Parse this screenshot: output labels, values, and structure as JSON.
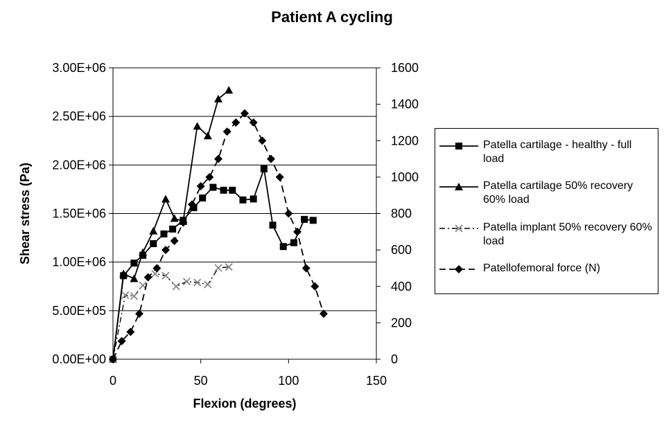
{
  "chart_data": {
    "type": "line",
    "title": "Patient A cycling",
    "xlabel": "Flexion (degrees)",
    "ylabel": "Shear stress (Pa)",
    "y2label": "",
    "xlim": [
      0,
      150
    ],
    "ylim": [
      0,
      3000000
    ],
    "y2lim": [
      0,
      1600
    ],
    "x_ticks": [
      "0",
      "50",
      "100",
      "150"
    ],
    "y_ticks": [
      "0.00E+00",
      "5.00E+05",
      "1.00E+06",
      "1.50E+06",
      "2.00E+06",
      "2.50E+06",
      "3.00E+06"
    ],
    "y2_ticks": [
      "0",
      "200",
      "400",
      "600",
      "800",
      "1000",
      "1200",
      "1400",
      "1600"
    ],
    "grid": "horizontal",
    "legend_position": "right",
    "series": [
      {
        "name": "Patella cartilage - healthy - full load",
        "axis": "left",
        "marker": "square",
        "line": "solid",
        "x": [
          0,
          6,
          12,
          17,
          23,
          29,
          34,
          40,
          46,
          51,
          57,
          63,
          68,
          74,
          80,
          86,
          91,
          97,
          103,
          109,
          114
        ],
        "y": [
          0,
          860000,
          990000,
          1070000,
          1190000,
          1290000,
          1340000,
          1430000,
          1560000,
          1660000,
          1770000,
          1740000,
          1740000,
          1640000,
          1650000,
          1960000,
          1380000,
          1160000,
          1200000,
          1440000,
          1430000
        ]
      },
      {
        "name": "Patella cartilage 50% recovery 60% load",
        "axis": "left",
        "marker": "triangle",
        "line": "solid",
        "x": [
          0,
          6,
          12,
          17,
          23,
          30,
          35,
          40,
          48,
          54,
          60,
          66
        ],
        "y": [
          0,
          880000,
          830000,
          1100000,
          1320000,
          1650000,
          1450000,
          1420000,
          2400000,
          2300000,
          2680000,
          2770000
        ]
      },
      {
        "name": "Patella implant 50% recovery 60% load",
        "axis": "left",
        "marker": "x",
        "line": "dashdot",
        "x": [
          0,
          7,
          12,
          17,
          24,
          30,
          36,
          42,
          48,
          54,
          60,
          66
        ],
        "y": [
          0,
          660000,
          650000,
          760000,
          880000,
          860000,
          750000,
          800000,
          790000,
          770000,
          940000,
          950000
        ]
      },
      {
        "name": "Patellofemoral force (N)",
        "axis": "right",
        "marker": "diamond",
        "line": "dashed",
        "x": [
          0,
          5,
          10,
          15,
          20,
          25,
          30,
          35,
          40,
          45,
          50,
          55,
          60,
          65,
          70,
          75,
          80,
          85,
          90,
          95,
          100,
          105,
          110,
          115,
          120
        ],
        "y": [
          0,
          100,
          150,
          250,
          450,
          500,
          600,
          650,
          750,
          850,
          950,
          1000,
          1100,
          1250,
          1300,
          1350,
          1300,
          1200,
          1100,
          1000,
          800,
          700,
          500,
          400,
          250
        ]
      }
    ]
  }
}
